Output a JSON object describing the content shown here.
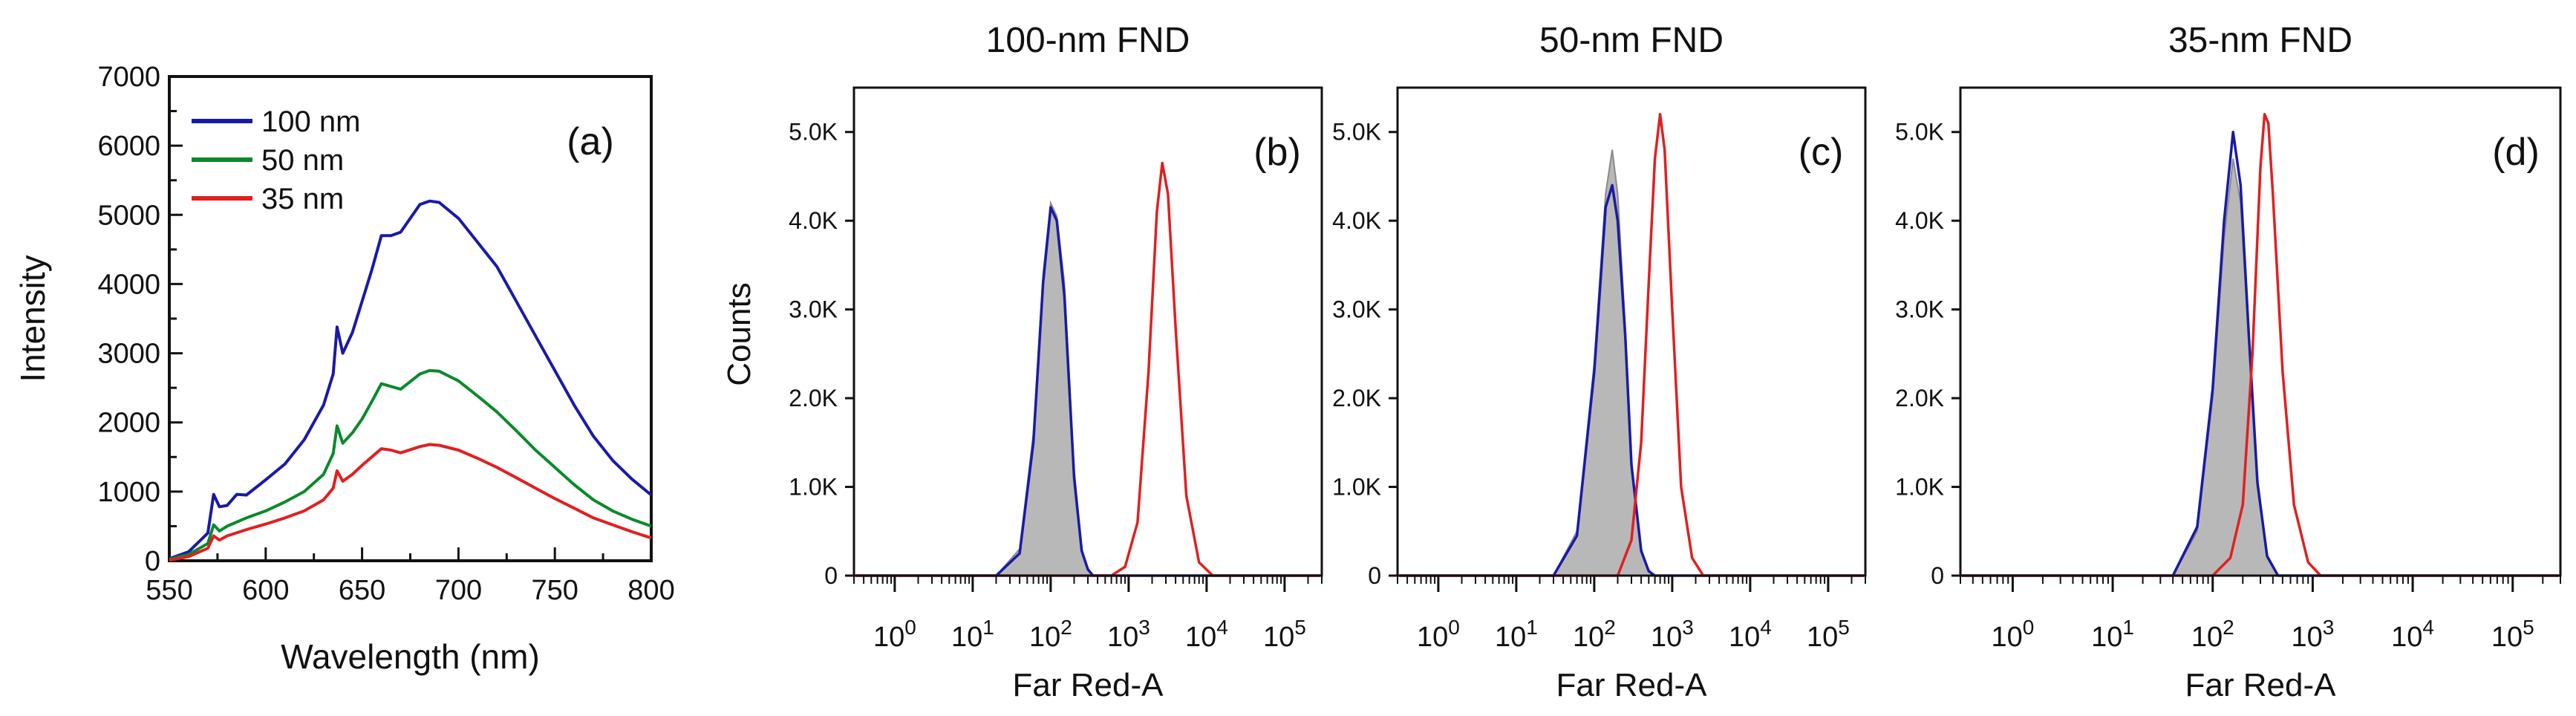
{
  "chart_data": [
    {
      "panel": "(a)",
      "type": "line",
      "title": "",
      "xlabel": "Wavelength (nm)",
      "ylabel": "Intensity",
      "xlim": [
        550,
        800
      ],
      "ylim": [
        0,
        7000
      ],
      "xticks": [
        "550",
        "600",
        "650",
        "700",
        "750",
        "800"
      ],
      "yticks": [
        "0",
        "1000",
        "2000",
        "3000",
        "4000",
        "5000",
        "6000",
        "7000"
      ],
      "legend_position": "top-left",
      "series": [
        {
          "name": "100 nm",
          "color": "#1a1aa6",
          "x": [
            550,
            560,
            570,
            573,
            576,
            580,
            585,
            590,
            600,
            610,
            620,
            630,
            635,
            637,
            640,
            645,
            650,
            655,
            660,
            665,
            670,
            675,
            680,
            685,
            690,
            700,
            710,
            720,
            730,
            740,
            750,
            760,
            770,
            780,
            790,
            800
          ],
          "y": [
            30,
            130,
            400,
            960,
            780,
            800,
            960,
            950,
            1170,
            1400,
            1750,
            2250,
            2700,
            3380,
            3000,
            3300,
            3750,
            4200,
            4700,
            4700,
            4750,
            4950,
            5150,
            5200,
            5180,
            4950,
            4600,
            4250,
            3750,
            3250,
            2750,
            2250,
            1800,
            1450,
            1180,
            950
          ]
        },
        {
          "name": "50 nm",
          "color": "#0a8a2a",
          "x": [
            550,
            560,
            570,
            573,
            576,
            580,
            590,
            600,
            610,
            620,
            630,
            635,
            637,
            640,
            645,
            650,
            655,
            660,
            665,
            670,
            680,
            685,
            690,
            700,
            710,
            720,
            730,
            740,
            750,
            760,
            770,
            780,
            790,
            800
          ],
          "y": [
            20,
            90,
            250,
            520,
            430,
            500,
            620,
            720,
            850,
            1000,
            1250,
            1550,
            1950,
            1700,
            1850,
            2050,
            2300,
            2560,
            2520,
            2480,
            2700,
            2750,
            2740,
            2600,
            2380,
            2150,
            1880,
            1600,
            1350,
            1100,
            880,
            720,
            600,
            500
          ]
        },
        {
          "name": "35 nm",
          "color": "#e02020",
          "x": [
            550,
            560,
            570,
            573,
            576,
            580,
            590,
            600,
            610,
            620,
            630,
            635,
            637,
            640,
            645,
            650,
            655,
            660,
            665,
            670,
            680,
            685,
            690,
            700,
            710,
            720,
            730,
            740,
            750,
            760,
            770,
            780,
            790,
            800
          ],
          "y": [
            10,
            60,
            180,
            360,
            300,
            360,
            450,
            530,
            620,
            720,
            880,
            1050,
            1300,
            1150,
            1250,
            1380,
            1500,
            1620,
            1600,
            1560,
            1650,
            1680,
            1670,
            1600,
            1480,
            1350,
            1200,
            1050,
            900,
            760,
            620,
            520,
            420,
            330
          ]
        }
      ]
    },
    {
      "panel": "(b)",
      "type": "area",
      "title": "100-nm FND",
      "xlabel": "Far Red-A",
      "ylabel": "Counts",
      "x_scale": "log",
      "xlim": [
        0.3,
        300000
      ],
      "ylim": [
        0,
        5500
      ],
      "xticks": [
        1,
        10,
        100,
        1000,
        10000,
        100000
      ],
      "yticks": [
        "0",
        "1.0K",
        "2.0K",
        "3.0K",
        "4.0K",
        "5.0K"
      ],
      "series": [
        {
          "name": "",
          "kind": "filled",
          "color": "#b0b0b0",
          "x": [
            20,
            40,
            60,
            80,
            100,
            120,
            150,
            200,
            250,
            300,
            350
          ],
          "y": [
            0,
            300,
            1600,
            3400,
            4200,
            4050,
            3300,
            1200,
            300,
            80,
            0
          ]
        },
        {
          "name": "",
          "kind": "line",
          "color": "#1a1aa6",
          "x": [
            20,
            40,
            60,
            80,
            100,
            120,
            150,
            200,
            250,
            300,
            350
          ],
          "y": [
            0,
            250,
            1500,
            3300,
            4150,
            4000,
            3150,
            1100,
            280,
            70,
            0
          ]
        },
        {
          "name": "",
          "kind": "line",
          "color": "#e02020",
          "x": [
            600,
            900,
            1300,
            1800,
            2300,
            2700,
            3200,
            4000,
            5500,
            8000,
            12000
          ],
          "y": [
            0,
            100,
            600,
            2300,
            4100,
            4650,
            4300,
            2800,
            900,
            150,
            0
          ]
        }
      ]
    },
    {
      "panel": "(c)",
      "type": "area",
      "title": "50-nm FND",
      "xlabel": "Far Red-A",
      "ylabel": "",
      "x_scale": "log",
      "xlim": [
        0.3,
        300000
      ],
      "ylim": [
        0,
        5500
      ],
      "xticks": [
        1,
        10,
        100,
        1000,
        10000,
        100000
      ],
      "yticks": [
        "0",
        "1.0K",
        "2.0K",
        "3.0K",
        "4.0K",
        "5.0K"
      ],
      "series": [
        {
          "name": "",
          "kind": "filled",
          "color": "#b0b0b0",
          "x": [
            30,
            60,
            100,
            140,
            170,
            200,
            250,
            300,
            400,
            500,
            600
          ],
          "y": [
            0,
            500,
            2400,
            4300,
            4800,
            4300,
            2800,
            1300,
            300,
            60,
            0
          ]
        },
        {
          "name": "",
          "kind": "line",
          "color": "#1a1aa6",
          "x": [
            30,
            60,
            100,
            140,
            170,
            200,
            250,
            300,
            400,
            500,
            600
          ],
          "y": [
            0,
            450,
            2300,
            4150,
            4400,
            4000,
            2700,
            1250,
            280,
            50,
            0
          ]
        },
        {
          "name": "",
          "kind": "line",
          "color": "#e02020",
          "x": [
            200,
            300,
            400,
            500,
            600,
            700,
            800,
            1000,
            1300,
            1800,
            2500
          ],
          "y": [
            0,
            400,
            1500,
            3300,
            4700,
            5200,
            4800,
            3000,
            1000,
            200,
            0
          ]
        }
      ]
    },
    {
      "panel": "(d)",
      "type": "area",
      "title": "35-nm FND",
      "xlabel": "Far Red-A",
      "ylabel": "",
      "x_scale": "log",
      "xlim": [
        0.3,
        300000
      ],
      "ylim": [
        0,
        5500
      ],
      "xticks": [
        1,
        10,
        100,
        1000,
        10000,
        100000
      ],
      "yticks": [
        "0",
        "1.0K",
        "2.0K",
        "3.0K",
        "4.0K",
        "5.0K"
      ],
      "series": [
        {
          "name": "",
          "kind": "filled",
          "color": "#b0b0b0",
          "x": [
            40,
            70,
            100,
            130,
            160,
            190,
            230,
            280,
            350,
            450
          ],
          "y": [
            0,
            500,
            2000,
            3800,
            4700,
            4200,
            2600,
            1000,
            200,
            0
          ]
        },
        {
          "name": "",
          "kind": "line",
          "color": "#1a1aa6",
          "x": [
            40,
            70,
            100,
            130,
            160,
            190,
            230,
            280,
            350,
            450
          ],
          "y": [
            0,
            550,
            2100,
            4000,
            5000,
            4400,
            2700,
            1050,
            220,
            0
          ]
        },
        {
          "name": "",
          "kind": "line",
          "color": "#e02020",
          "x": [
            100,
            150,
            200,
            250,
            300,
            330,
            360,
            400,
            500,
            650,
            900,
            1200
          ],
          "y": [
            0,
            200,
            800,
            2500,
            4600,
            5200,
            5100,
            4300,
            2300,
            800,
            150,
            0
          ]
        }
      ]
    }
  ]
}
